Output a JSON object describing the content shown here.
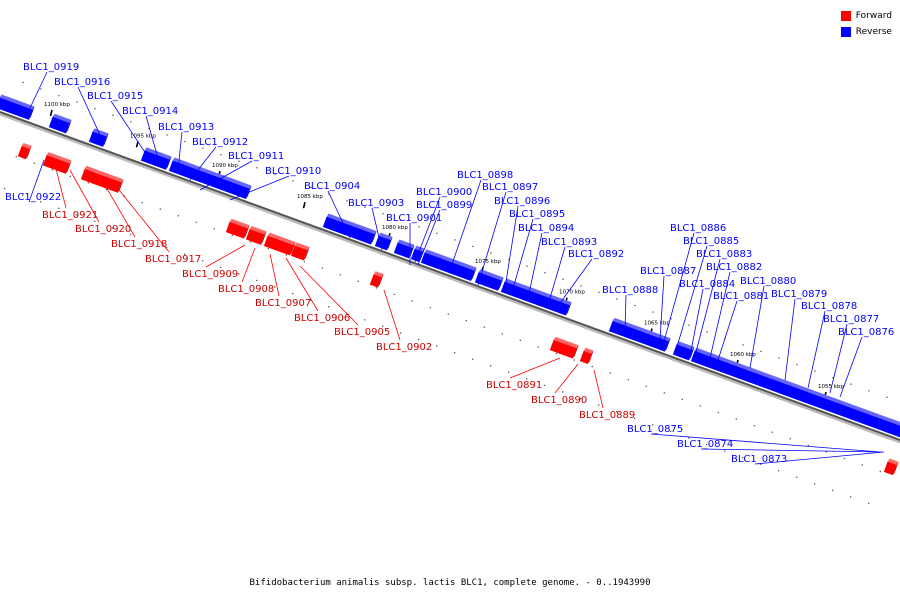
{
  "legend": {
    "forward_label": "Forward",
    "reverse_label": "Reverse",
    "forward_color": "#ff0000",
    "reverse_color": "#0000ff"
  },
  "caption": "Bifidobacterium animalis subsp. lactis BLC1, complete genome. - 0..1943990",
  "ruler_ticks": [
    "1100 kbp",
    "1095 kbp",
    "1090 kbp",
    "1085 kbp",
    "1080 kbp",
    "1075 kbp",
    "1070 kbp",
    "1065 kbp",
    "1060 kbp",
    "1055 kbp"
  ],
  "reverse_genes": [
    "BLC1_0919",
    "BLC1_0916",
    "BLC1_0915",
    "BLC1_0914",
    "BLC1_0913",
    "BLC1_0912",
    "BLC1_0911",
    "BLC1_0910",
    "BLC1_0922",
    "BLC1_0904",
    "BLC1_0903",
    "BLC1_0901",
    "BLC1_0900",
    "BLC1_0899",
    "BLC1_0898",
    "BLC1_0897",
    "BLC1_0896",
    "BLC1_0895",
    "BLC1_0894",
    "BLC1_0893",
    "BLC1_0892",
    "BLC1_0888",
    "BLC1_0887",
    "BLC1_0886",
    "BLC1_0885",
    "BLC1_0884",
    "BLC1_0883",
    "BLC1_0882",
    "BLC1_0881",
    "BLC1_0880",
    "BLC1_0879",
    "BLC1_0878",
    "BLC1_0877",
    "BLC1_0876",
    "BLC1_0875",
    "BLC1_0874",
    "BLC1_0873"
  ],
  "forward_genes": [
    "BLC1_0921",
    "BLC1_0920",
    "BLC1_0918",
    "BLC1_0917",
    "BLC1_0909",
    "BLC1_0908",
    "BLC1_0907",
    "BLC1_0906",
    "BLC1_0905",
    "BLC1_0902",
    "BLC1_0891",
    "BLC1_0890",
    "BLC1_0889"
  ]
}
